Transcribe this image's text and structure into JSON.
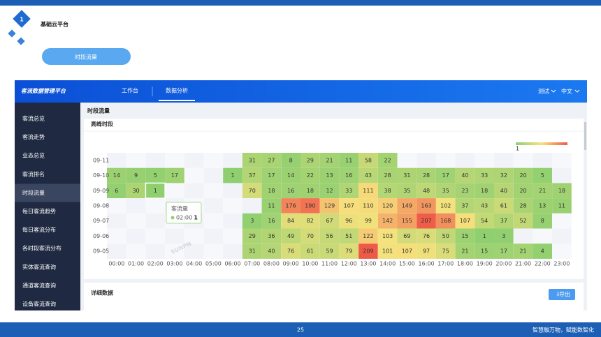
{
  "slide": {
    "number_badge": "1",
    "title": "基础云平台",
    "pill": "时段流量",
    "page": "25",
    "slogan": "智慧融万物，赋能数智化"
  },
  "app": {
    "logo": "客流数据管理平台",
    "nav": [
      "工作台",
      "数据分析"
    ],
    "nav_active": 1,
    "user": "测试",
    "lang": "中文",
    "sidebar": [
      "客流总览",
      "客流走势",
      "业态总览",
      "客流排名",
      "时段流量",
      "每日客流趋势",
      "每日客流分布",
      "各时段客流分布",
      "实体客流查询",
      "通道客流查询",
      "设备客流查询"
    ],
    "sidebar_active": 4,
    "page_title": "时段流量",
    "card_title": "高峰时段",
    "detail_title": "详细数据",
    "export": "导出",
    "watermark": "SUNPN"
  },
  "heatmap": {
    "type": "heatmap",
    "colors": [
      "#8fcf70",
      "#f6e27c",
      "#ef5a48"
    ],
    "legend_min": 1,
    "rows": [
      "09-11",
      "09-10",
      "09-09",
      "09-08",
      "09-07",
      "09-06",
      "09-05"
    ],
    "hours": [
      "00:00",
      "01:00",
      "02:00",
      "03:00",
      "04:00",
      "05:00",
      "06:00",
      "07:00",
      "08:00",
      "09:00",
      "10:00",
      "11:00",
      "12:00",
      "13:00",
      "14:00",
      "15:00",
      "16:00",
      "17:00",
      "18:00",
      "19:00",
      "20:00",
      "21:00",
      "22:00",
      "23:00"
    ],
    "values": [
      [
        null,
        null,
        null,
        null,
        null,
        null,
        null,
        31,
        27,
        8,
        29,
        21,
        11,
        58,
        22,
        null,
        null,
        null,
        null,
        null,
        null,
        null,
        null,
        null
      ],
      [
        14,
        9,
        5,
        17,
        null,
        null,
        1,
        37,
        17,
        14,
        22,
        13,
        16,
        43,
        28,
        31,
        28,
        17,
        40,
        33,
        32,
        20,
        5,
        null
      ],
      [
        6,
        30,
        1,
        null,
        null,
        null,
        null,
        70,
        18,
        16,
        18,
        12,
        33,
        111,
        38,
        35,
        48,
        35,
        23,
        18,
        40,
        20,
        21,
        18
      ],
      [
        null,
        null,
        null,
        null,
        null,
        null,
        null,
        null,
        11,
        176,
        190,
        129,
        107,
        110,
        120,
        149,
        163,
        102,
        37,
        43,
        61,
        28,
        13,
        11
      ],
      [
        null,
        null,
        null,
        null,
        null,
        null,
        null,
        3,
        16,
        84,
        82,
        67,
        96,
        99,
        142,
        155,
        207,
        168,
        107,
        54,
        37,
        52,
        8,
        null
      ],
      [
        null,
        null,
        null,
        null,
        null,
        null,
        null,
        29,
        36,
        49,
        70,
        56,
        51,
        122,
        103,
        69,
        76,
        50,
        15,
        1,
        3,
        null,
        null,
        null
      ],
      [
        null,
        null,
        null,
        null,
        null,
        null,
        null,
        31,
        40,
        76,
        61,
        59,
        79,
        209,
        101,
        107,
        97,
        75,
        21,
        15,
        17,
        21,
        4,
        null
      ]
    ],
    "tooltip": {
      "title": "客流量",
      "time": "02:00",
      "value": 1,
      "row": 2,
      "col": 2
    }
  }
}
